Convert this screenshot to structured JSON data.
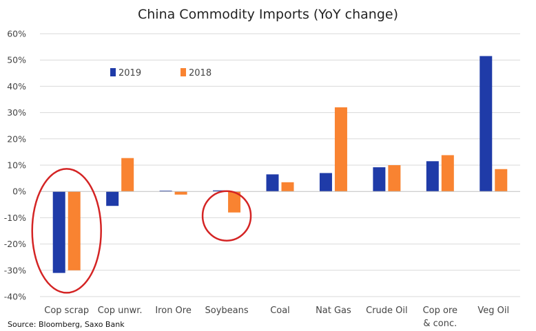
{
  "chart_data": {
    "type": "bar",
    "title": "China Commodity Imports (YoY change)",
    "source": "Source: Bloomberg, Saxo Bank",
    "categories": [
      "Cop scrap",
      "Cop unwr.",
      "Iron Ore",
      "Soybeans",
      "Coal",
      "Nat Gas",
      "Crude Oil",
      "Cop ore & conc.",
      "Veg Oil"
    ],
    "series": [
      {
        "name": "2019",
        "color": "#1f3ba8",
        "values": [
          -31,
          -5.5,
          0.3,
          0.4,
          6.5,
          7,
          9.2,
          11.5,
          51.5
        ]
      },
      {
        "name": "2018",
        "color": "#f98331",
        "values": [
          -30,
          12.7,
          -1.2,
          -8,
          3.5,
          32,
          10,
          13.8,
          8.5
        ]
      }
    ],
    "ylim": [
      -40,
      60
    ],
    "yticks": [
      60,
      50,
      40,
      30,
      20,
      10,
      0,
      -10,
      -20,
      -30,
      -40
    ],
    "ytick_labels": [
      "60%",
      "50%",
      "40%",
      "30%",
      "20%",
      "10%",
      "0%",
      "-10%",
      "-20%",
      "-30%",
      "-40%"
    ],
    "grid": true,
    "legend_position": "top-left",
    "annotations": [
      {
        "type": "circle",
        "category": "Cop scrap",
        "color": "#d42424"
      },
      {
        "type": "circle",
        "category": "Soybeans",
        "color": "#d42424"
      }
    ]
  }
}
